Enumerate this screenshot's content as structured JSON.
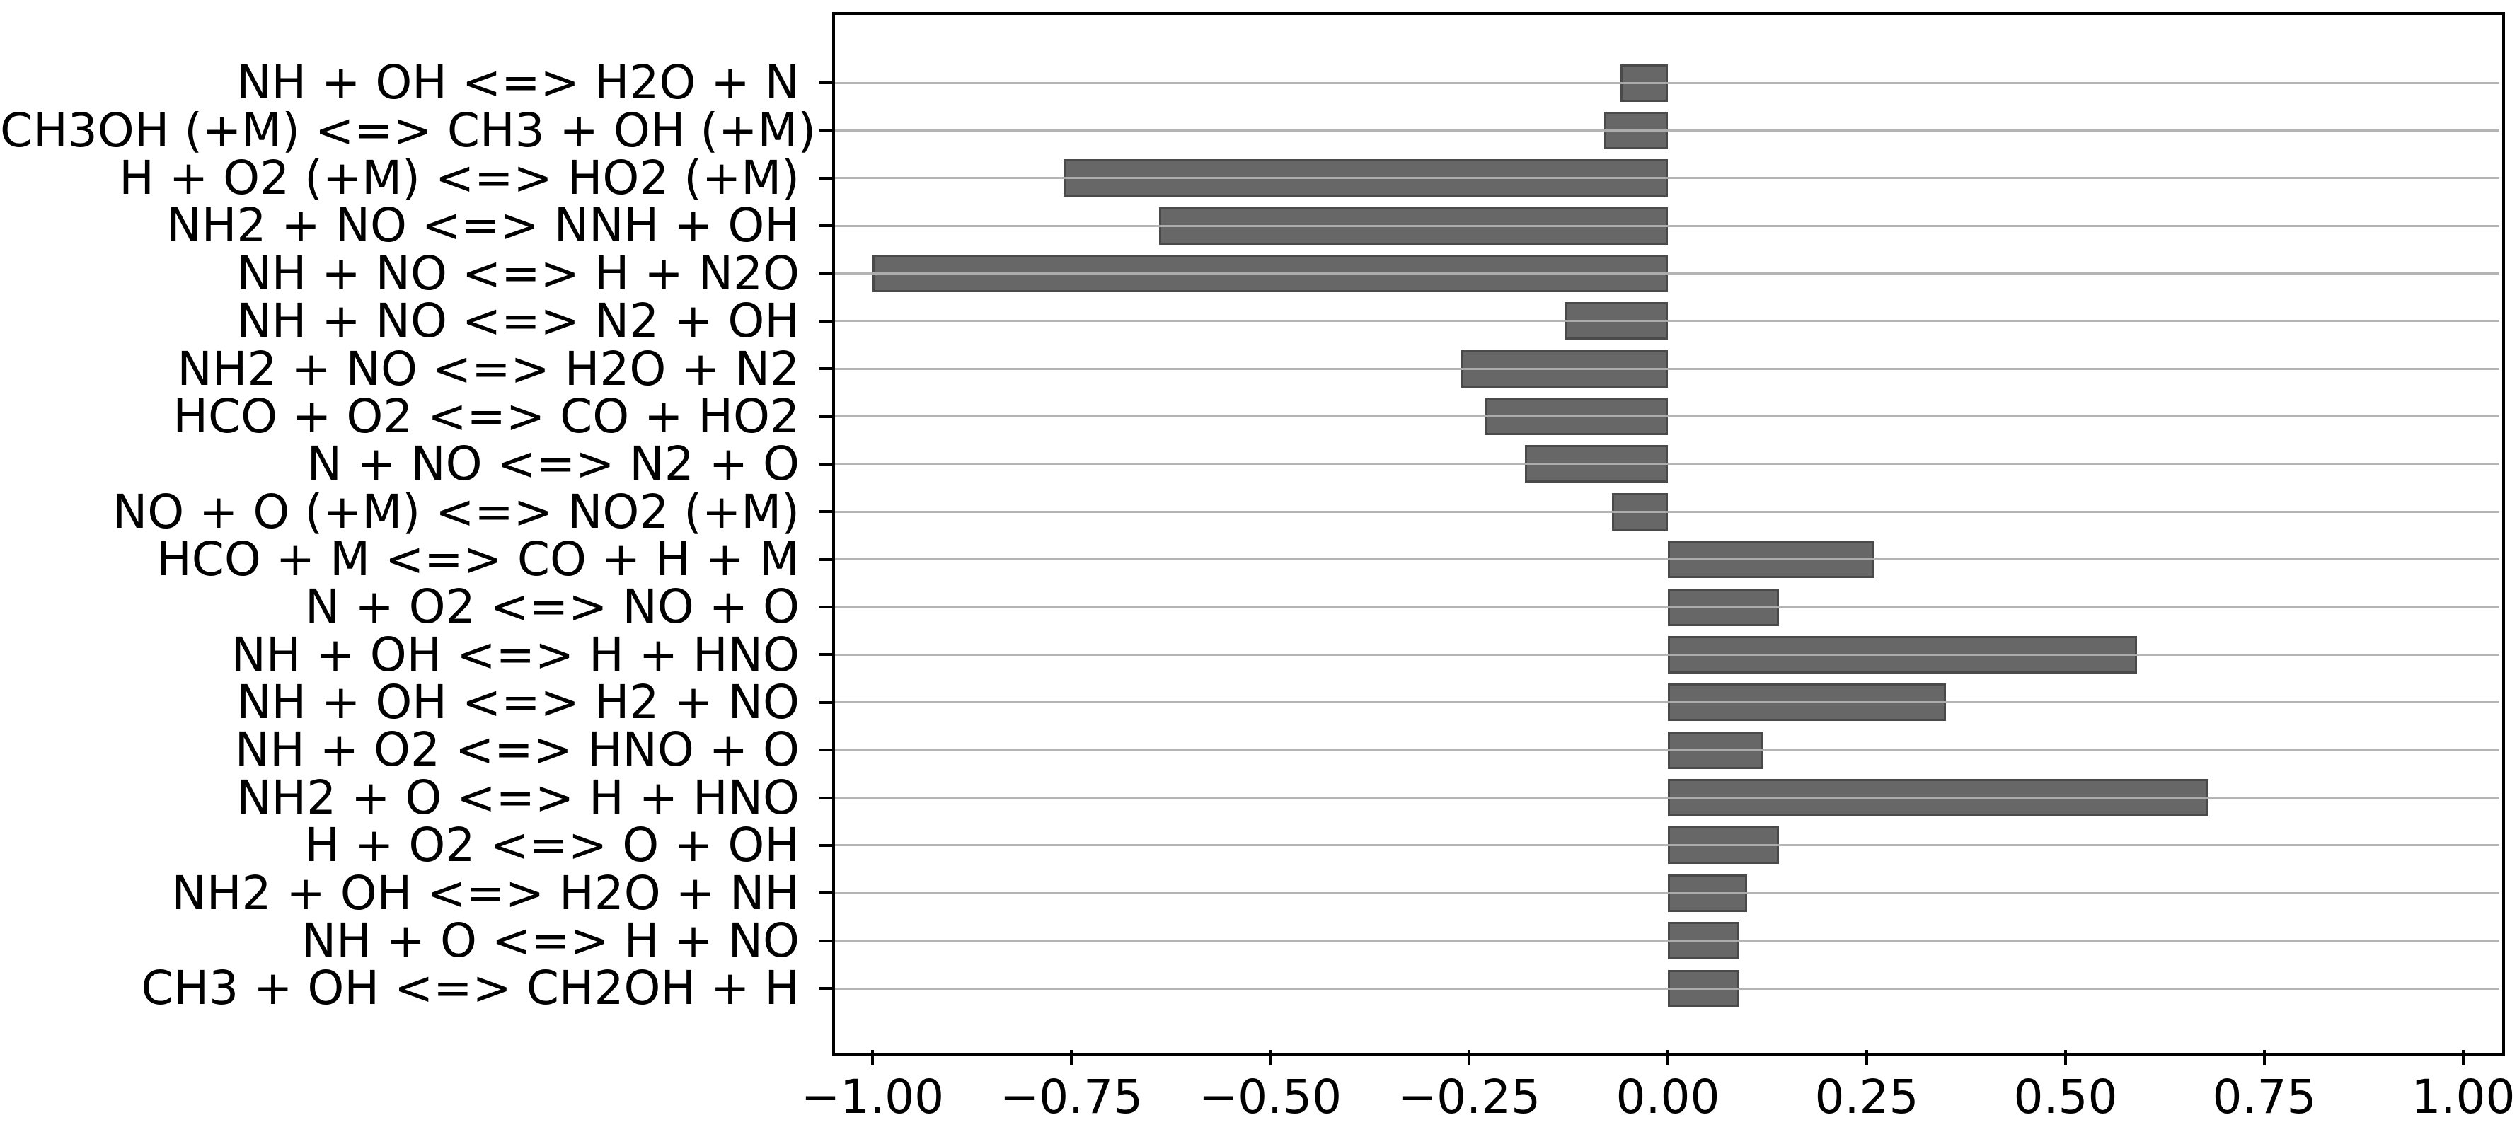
{
  "chart_data": {
    "type": "bar",
    "orientation": "horizontal",
    "title": "",
    "xlabel": "",
    "ylabel": "",
    "categories": [
      "NH + OH <=> H2O + N",
      "CH3OH (+M) <=> CH3 + OH (+M)",
      "H + O2 (+M) <=> HO2 (+M)",
      "NH2 + NO <=> NNH + OH",
      "NH + NO <=> H + N2O",
      "NH + NO <=> N2 + OH",
      "NH2 + NO <=> H2O + N2",
      "HCO + O2 <=> CO + HO2",
      "N + NO <=> N2 + O",
      "NO + O (+M) <=> NO2 (+M)",
      "HCO + M <=> CO + H + M",
      "N + O2 <=> NO + O",
      "NH + OH <=> H + HNO",
      "NH + OH <=> H2 + NO",
      "NH + O2 <=> HNO + O",
      "NH2 + O <=> H + HNO",
      "H + O2 <=> O + OH",
      "NH2 + OH <=> H2O + NH",
      "NH + O <=> H + NO",
      "CH3 + OH <=> CH2OH + H"
    ],
    "values": [
      -0.06,
      -0.08,
      -0.76,
      -0.64,
      -1.0,
      -0.13,
      -0.26,
      -0.23,
      -0.18,
      -0.07,
      0.26,
      0.14,
      0.59,
      0.35,
      0.12,
      0.68,
      0.14,
      0.1,
      0.09,
      0.09
    ],
    "xlim": [
      -1.05,
      1.05
    ],
    "xticks": [
      -1.0,
      -0.75,
      -0.5,
      -0.25,
      0.0,
      0.25,
      0.5,
      0.75,
      1.0
    ],
    "xtick_labels": [
      "−1.00",
      "−0.75",
      "−0.50",
      "−0.25",
      "0.00",
      "0.25",
      "0.50",
      "0.75",
      "1.00"
    ],
    "grid": "horizontal",
    "legend": "none",
    "bar_color": "#676767",
    "bar_edge_color": "#4a4a4a",
    "grid_color": "#b0b0b0",
    "spine_color": "#000000",
    "background_color": "#ffffff"
  }
}
